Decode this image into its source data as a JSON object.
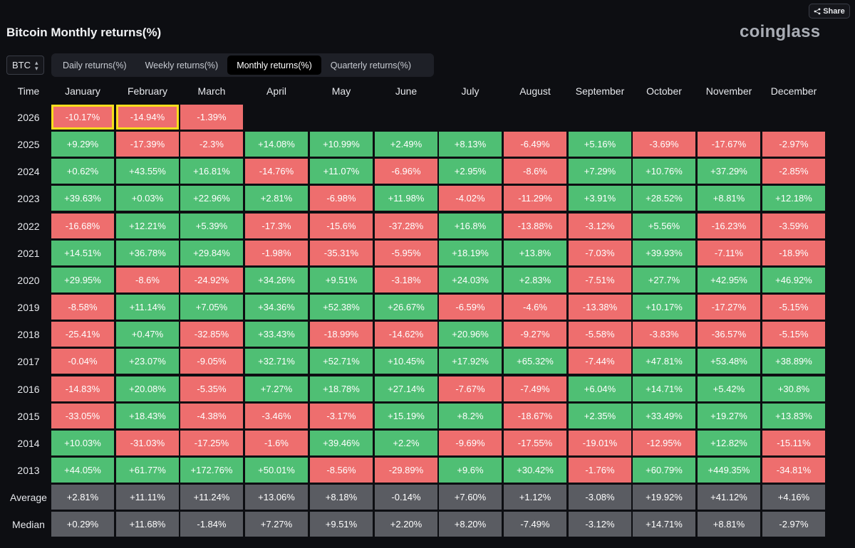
{
  "header": {
    "title": "Bitcoin Monthly returns(%)",
    "logo": "coinglass",
    "share_label": "Share"
  },
  "controls": {
    "selected_coin": "BTC",
    "tabs": [
      {
        "label": "Daily returns(%)",
        "active": false
      },
      {
        "label": "Weekly returns(%)",
        "active": false
      },
      {
        "label": "Monthly returns(%)",
        "active": true
      },
      {
        "label": "Quarterly returns(%)",
        "active": false
      }
    ]
  },
  "colors": {
    "positive": "#4fbf74",
    "negative": "#ee6e6e",
    "stat": "#5a5c62",
    "highlight": "#f6de1c",
    "background": "#0d0e12"
  },
  "chart_data": {
    "type": "table",
    "title": "Bitcoin Monthly returns(%)",
    "row_header": "Time",
    "columns": [
      "January",
      "February",
      "March",
      "April",
      "May",
      "June",
      "July",
      "August",
      "September",
      "October",
      "November",
      "December"
    ],
    "rows": [
      {
        "label": "2026",
        "values": [
          "-10.17%",
          "-14.94%",
          "-1.39%"
        ],
        "highlighted": [
          0,
          1
        ]
      },
      {
        "label": "2025",
        "values": [
          "+9.29%",
          "-17.39%",
          "-2.3%",
          "+14.08%",
          "+10.99%",
          "+2.49%",
          "+8.13%",
          "-6.49%",
          "+5.16%",
          "-3.69%",
          "-17.67%",
          "-2.97%"
        ]
      },
      {
        "label": "2024",
        "values": [
          "+0.62%",
          "+43.55%",
          "+16.81%",
          "-14.76%",
          "+11.07%",
          "-6.96%",
          "+2.95%",
          "-8.6%",
          "+7.29%",
          "+10.76%",
          "+37.29%",
          "-2.85%"
        ]
      },
      {
        "label": "2023",
        "values": [
          "+39.63%",
          "+0.03%",
          "+22.96%",
          "+2.81%",
          "-6.98%",
          "+11.98%",
          "-4.02%",
          "-11.29%",
          "+3.91%",
          "+28.52%",
          "+8.81%",
          "+12.18%"
        ]
      },
      {
        "label": "2022",
        "values": [
          "-16.68%",
          "+12.21%",
          "+5.39%",
          "-17.3%",
          "-15.6%",
          "-37.28%",
          "+16.8%",
          "-13.88%",
          "-3.12%",
          "+5.56%",
          "-16.23%",
          "-3.59%"
        ]
      },
      {
        "label": "2021",
        "values": [
          "+14.51%",
          "+36.78%",
          "+29.84%",
          "-1.98%",
          "-35.31%",
          "-5.95%",
          "+18.19%",
          "+13.8%",
          "-7.03%",
          "+39.93%",
          "-7.11%",
          "-18.9%"
        ]
      },
      {
        "label": "2020",
        "values": [
          "+29.95%",
          "-8.6%",
          "-24.92%",
          "+34.26%",
          "+9.51%",
          "-3.18%",
          "+24.03%",
          "+2.83%",
          "-7.51%",
          "+27.7%",
          "+42.95%",
          "+46.92%"
        ]
      },
      {
        "label": "2019",
        "values": [
          "-8.58%",
          "+11.14%",
          "+7.05%",
          "+34.36%",
          "+52.38%",
          "+26.67%",
          "-6.59%",
          "-4.6%",
          "-13.38%",
          "+10.17%",
          "-17.27%",
          "-5.15%"
        ]
      },
      {
        "label": "2018",
        "values": [
          "-25.41%",
          "+0.47%",
          "-32.85%",
          "+33.43%",
          "-18.99%",
          "-14.62%",
          "+20.96%",
          "-9.27%",
          "-5.58%",
          "-3.83%",
          "-36.57%",
          "-5.15%"
        ]
      },
      {
        "label": "2017",
        "values": [
          "-0.04%",
          "+23.07%",
          "-9.05%",
          "+32.71%",
          "+52.71%",
          "+10.45%",
          "+17.92%",
          "+65.32%",
          "-7.44%",
          "+47.81%",
          "+53.48%",
          "+38.89%"
        ]
      },
      {
        "label": "2016",
        "values": [
          "-14.83%",
          "+20.08%",
          "-5.35%",
          "+7.27%",
          "+18.78%",
          "+27.14%",
          "-7.67%",
          "-7.49%",
          "+6.04%",
          "+14.71%",
          "+5.42%",
          "+30.8%"
        ]
      },
      {
        "label": "2015",
        "values": [
          "-33.05%",
          "+18.43%",
          "-4.38%",
          "-3.46%",
          "-3.17%",
          "+15.19%",
          "+8.2%",
          "-18.67%",
          "+2.35%",
          "+33.49%",
          "+19.27%",
          "+13.83%"
        ]
      },
      {
        "label": "2014",
        "values": [
          "+10.03%",
          "-31.03%",
          "-17.25%",
          "-1.6%",
          "+39.46%",
          "+2.2%",
          "-9.69%",
          "-17.55%",
          "-19.01%",
          "-12.95%",
          "+12.82%",
          "-15.11%"
        ]
      },
      {
        "label": "2013",
        "values": [
          "+44.05%",
          "+61.77%",
          "+172.76%",
          "+50.01%",
          "-8.56%",
          "-29.89%",
          "+9.6%",
          "+30.42%",
          "-1.76%",
          "+60.79%",
          "+449.35%",
          "-34.81%"
        ]
      }
    ],
    "summary_rows": [
      {
        "label": "Average",
        "values": [
          "+2.81%",
          "+11.11%",
          "+11.24%",
          "+13.06%",
          "+8.18%",
          "-0.14%",
          "+7.60%",
          "+1.12%",
          "-3.08%",
          "+19.92%",
          "+41.12%",
          "+4.16%"
        ]
      },
      {
        "label": "Median",
        "values": [
          "+0.29%",
          "+11.68%",
          "-1.84%",
          "+7.27%",
          "+9.51%",
          "+2.20%",
          "+8.20%",
          "-7.49%",
          "-3.12%",
          "+14.71%",
          "+8.81%",
          "-2.97%"
        ]
      }
    ]
  }
}
